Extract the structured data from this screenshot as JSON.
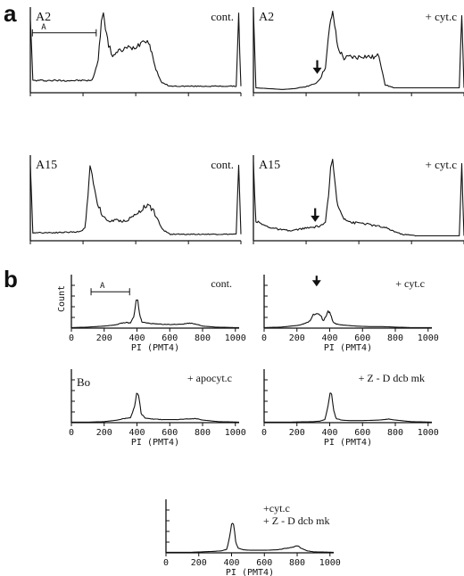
{
  "panel_letters": {
    "a": "a",
    "b": "b"
  },
  "chart_data": [
    {
      "type": "line",
      "group": "a",
      "id": "a1",
      "sample": "A2",
      "condition": "cont.",
      "bracket_label": "A",
      "arrow": false,
      "xlim": [
        0,
        1023
      ],
      "xticks": [
        0,
        256,
        512,
        768,
        1023
      ],
      "series": [
        {
          "x": [
            0,
            12,
            300,
            330,
            345,
            355,
            365,
            380,
            400,
            440,
            470,
            500,
            530,
            555,
            575,
            590,
            600,
            610,
            640,
            680,
            700,
            760,
            880,
            1000,
            1012,
            1023
          ],
          "y": [
            92,
            15,
            15,
            40,
            88,
            98,
            80,
            58,
            46,
            52,
            55,
            55,
            60,
            66,
            62,
            50,
            38,
            28,
            12,
            8,
            8,
            8,
            8,
            8,
            95,
            8
          ]
        }
      ]
    },
    {
      "type": "line",
      "group": "a",
      "id": "a2",
      "sample": "A2",
      "condition": "+ cyt.c",
      "bracket_label": "",
      "arrow": true,
      "arrow_x": 310,
      "xlim": [
        0,
        1023
      ],
      "xticks": [
        0,
        256,
        512,
        768,
        1023
      ],
      "series": [
        {
          "x": [
            0,
            12,
            140,
            200,
            260,
            290,
            310,
            330,
            350,
            370,
            385,
            395,
            410,
            440,
            470,
            500,
            530,
            560,
            590,
            610,
            640,
            680,
            760,
            880,
            1000,
            1012,
            1023
          ],
          "y": [
            98,
            6,
            4,
            5,
            8,
            10,
            13,
            20,
            32,
            80,
            100,
            82,
            55,
            42,
            44,
            43,
            45,
            44,
            43,
            46,
            10,
            6,
            6,
            6,
            6,
            98,
            6
          ]
        }
      ]
    },
    {
      "type": "line",
      "group": "a",
      "id": "a3",
      "sample": "A15",
      "condition": "cont.",
      "bracket_label": "",
      "arrow": false,
      "xlim": [
        0,
        1023
      ],
      "xticks": [
        0,
        256,
        512,
        768,
        1023
      ],
      "series": [
        {
          "x": [
            0,
            12,
            120,
            240,
            265,
            280,
            290,
            300,
            320,
            350,
            380,
            420,
            460,
            500,
            540,
            570,
            600,
            640,
            680,
            720,
            800,
            900,
            1000,
            1012,
            1023
          ],
          "y": [
            90,
            10,
            10,
            11,
            15,
            55,
            92,
            82,
            52,
            30,
            24,
            25,
            24,
            30,
            38,
            45,
            36,
            14,
            8,
            8,
            8,
            8,
            8,
            90,
            8
          ]
        }
      ]
    },
    {
      "type": "line",
      "group": "a",
      "id": "a4",
      "sample": "A15",
      "condition": "+ cyt.c",
      "bracket_label": "",
      "arrow": true,
      "arrow_x": 300,
      "xlim": [
        0,
        1023
      ],
      "xticks": [
        0,
        256,
        512,
        768,
        1023
      ],
      "series": [
        {
          "x": [
            0,
            12,
            60,
            120,
            180,
            240,
            280,
            320,
            350,
            365,
            375,
            385,
            395,
            410,
            440,
            480,
            520,
            560,
            600,
            640,
            680,
            720,
            800,
            900,
            1000,
            1012,
            1023
          ],
          "y": [
            95,
            24,
            18,
            14,
            12,
            15,
            16,
            18,
            22,
            55,
            90,
            100,
            72,
            42,
            28,
            22,
            22,
            20,
            18,
            16,
            12,
            8,
            6,
            6,
            6,
            95,
            6
          ]
        }
      ]
    },
    {
      "type": "line",
      "group": "b",
      "id": "b1",
      "sample": "",
      "condition": "cont.",
      "bracket_label": "A",
      "arrow": false,
      "xlabel": "PI (PMT4)",
      "ylabel": "Count",
      "xlim": [
        0,
        1023
      ],
      "xticks": [
        0,
        200,
        400,
        600,
        800,
        1000
      ],
      "series": [
        {
          "x": [
            0,
            100,
            200,
            260,
            300,
            330,
            360,
            380,
            395,
            405,
            415,
            430,
            460,
            520,
            600,
            680,
            720,
            760,
            800,
            880,
            1000,
            1023
          ],
          "y": [
            1,
            2,
            4,
            6,
            9,
            11,
            10,
            22,
            55,
            55,
            28,
            12,
            10,
            8,
            7,
            8,
            10,
            8,
            4,
            2,
            1,
            1
          ]
        }
      ]
    },
    {
      "type": "line",
      "group": "b",
      "id": "b2",
      "sample": "",
      "condition": "+ cyt.c",
      "bracket_label": "",
      "arrow": true,
      "arrow_x": 320,
      "xlabel": "PI (PMT4)",
      "ylabel": "",
      "xlim": [
        0,
        1023
      ],
      "xticks": [
        0,
        200,
        400,
        600,
        800,
        1000
      ],
      "series": [
        {
          "x": [
            0,
            100,
            200,
            240,
            280,
            300,
            320,
            345,
            360,
            375,
            390,
            405,
            420,
            440,
            480,
            560,
            640,
            720,
            800,
            900,
            1023
          ],
          "y": [
            1,
            2,
            5,
            8,
            14,
            26,
            28,
            26,
            14,
            22,
            34,
            28,
            12,
            8,
            6,
            4,
            3,
            3,
            2,
            1,
            1
          ]
        }
      ]
    },
    {
      "type": "line",
      "group": "b",
      "id": "b3",
      "sample": "Bo",
      "condition": "+ apocyt.c",
      "bracket_label": "",
      "arrow": false,
      "xlabel": "PI (PMT4)",
      "ylabel": "",
      "xlim": [
        0,
        1023
      ],
      "xticks": [
        0,
        200,
        400,
        600,
        800,
        1000
      ],
      "series": [
        {
          "x": [
            0,
            100,
            200,
            280,
            320,
            360,
            385,
            398,
            410,
            425,
            450,
            500,
            560,
            640,
            700,
            760,
            800,
            900,
            1023
          ],
          "y": [
            1,
            1,
            2,
            5,
            8,
            10,
            30,
            56,
            56,
            18,
            9,
            7,
            6,
            6,
            7,
            8,
            5,
            2,
            1
          ]
        }
      ]
    },
    {
      "type": "line",
      "group": "b",
      "id": "b4",
      "sample": "",
      "condition": "+ Z - D dcb mk",
      "bracket_label": "",
      "arrow": false,
      "xlabel": "PI (PMT4)",
      "ylabel": "",
      "xlim": [
        0,
        1023
      ],
      "xticks": [
        0,
        200,
        400,
        600,
        800,
        1000
      ],
      "series": [
        {
          "x": [
            0,
            150,
            300,
            340,
            370,
            390,
            402,
            412,
            425,
            440,
            470,
            520,
            600,
            700,
            760,
            800,
            900,
            1023
          ],
          "y": [
            1,
            1,
            2,
            3,
            6,
            32,
            58,
            58,
            22,
            8,
            5,
            4,
            4,
            5,
            7,
            5,
            2,
            1
          ]
        }
      ]
    },
    {
      "type": "line",
      "group": "b",
      "id": "b5",
      "sample": "",
      "condition": "+cyt.c\n+ Z - D dcb mk",
      "bracket_label": "",
      "arrow": false,
      "xlabel": "PI (PMT4)",
      "ylabel": "",
      "xlim": [
        0,
        1023
      ],
      "xticks": [
        0,
        200,
        400,
        600,
        800,
        1000
      ],
      "series": [
        {
          "x": [
            0,
            150,
            300,
            340,
            370,
            388,
            400,
            412,
            425,
            440,
            470,
            520,
            600,
            680,
            740,
            780,
            800,
            820,
            860,
            900,
            1023
          ],
          "y": [
            1,
            1,
            3,
            4,
            7,
            30,
            58,
            58,
            22,
            9,
            6,
            5,
            5,
            6,
            9,
            12,
            14,
            10,
            4,
            2,
            1
          ]
        }
      ]
    }
  ]
}
